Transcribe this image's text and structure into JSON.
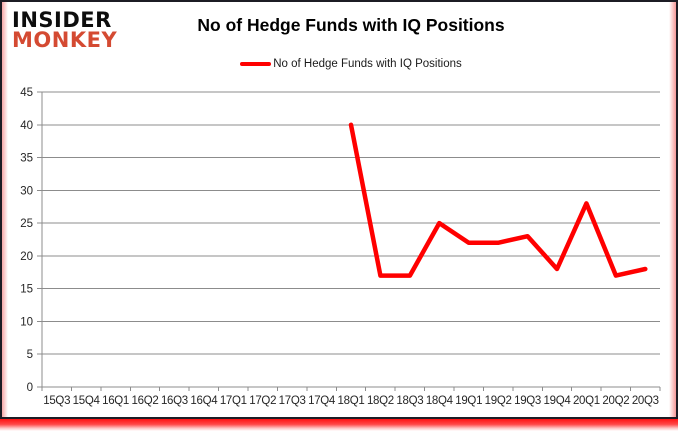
{
  "logo": {
    "line1": "INSIDER",
    "line2": "MONKEY"
  },
  "header": {
    "title": "No of Hedge Funds with IQ Positions"
  },
  "legend": {
    "label": "No of Hedge Funds with IQ Positions"
  },
  "colors": {
    "series_red": "#ff0000",
    "logo_red": "#d44a32",
    "gridline_gray": "#8c8c8c"
  },
  "chart_data": {
    "type": "line",
    "title": "No of Hedge Funds with IQ Positions",
    "xlabel": "",
    "ylabel": "",
    "categories": [
      "15Q3",
      "15Q4",
      "16Q1",
      "16Q2",
      "16Q3",
      "16Q4",
      "17Q1",
      "17Q2",
      "17Q3",
      "17Q4",
      "18Q1",
      "18Q2",
      "18Q3",
      "18Q4",
      "19Q1",
      "19Q2",
      "19Q3",
      "19Q4",
      "20Q1",
      "20Q2",
      "20Q3"
    ],
    "series": [
      {
        "name": "No of Hedge Funds with IQ Positions",
        "color": "#ff0000",
        "values": [
          null,
          null,
          null,
          null,
          null,
          null,
          null,
          null,
          null,
          null,
          40,
          17,
          17,
          25,
          22,
          22,
          23,
          18,
          28,
          17,
          18
        ]
      }
    ],
    "ylim": [
      0,
      45
    ],
    "ytick_step": 5,
    "grid": true,
    "legend_position": "top-center"
  }
}
